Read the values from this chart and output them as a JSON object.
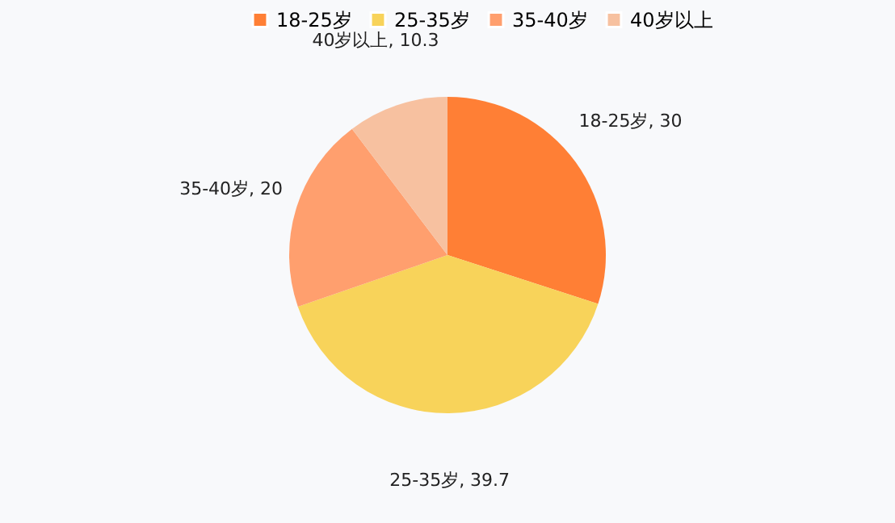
{
  "chart_data": {
    "type": "pie",
    "categories": [
      "18-25岁",
      "25-35岁",
      "35-40岁",
      "40岁以上"
    ],
    "values": [
      30,
      39.7,
      20,
      10.3
    ],
    "value_labels": [
      "18-25岁, 30",
      "25-35岁, 39.7",
      "35-40岁, 20",
      "40岁以上, 10.3"
    ],
    "colors": [
      "#ff7f35",
      "#f8d35a",
      "#ff9f6e",
      "#f7c1a0"
    ],
    "legend": "top"
  }
}
